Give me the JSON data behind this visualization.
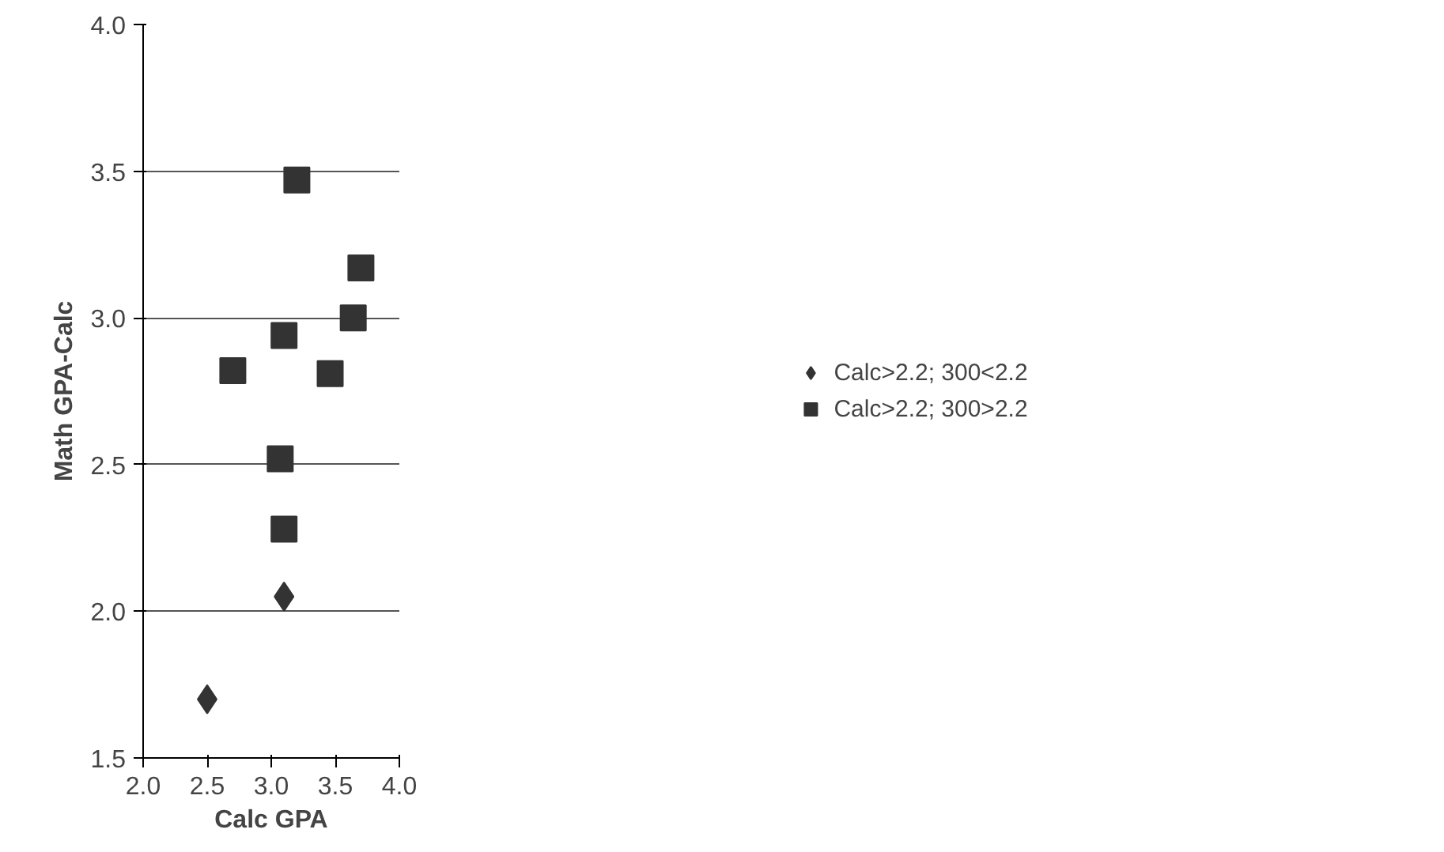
{
  "chart_data": {
    "type": "scatter",
    "xlabel": "Calc GPA",
    "ylabel": "Math GPA-Calc",
    "xlim": [
      2.0,
      4.0
    ],
    "xticks": [
      {
        "value": 2.0,
        "label": "2.0"
      },
      {
        "value": 2.5,
        "label": "2.5"
      },
      {
        "value": 3.0,
        "label": "3.0"
      },
      {
        "value": 3.5,
        "label": "3.5"
      },
      {
        "value": 4.0,
        "label": "4.0"
      }
    ],
    "ylim": [
      1.5,
      4.0
    ],
    "yticks": [
      {
        "value": 1.5,
        "label": "1.5"
      },
      {
        "value": 2.0,
        "label": "2.0"
      },
      {
        "value": 2.5,
        "label": "2.5"
      },
      {
        "value": 3.0,
        "label": "3.0"
      },
      {
        "value": 3.5,
        "label": "3.5"
      },
      {
        "value": 4.0,
        "label": "4.0"
      }
    ],
    "grid": "y",
    "legend": "right",
    "series": [
      {
        "name": "Calc>2.2; 300<2.2",
        "color": "#333333",
        "marker": "diamond",
        "x": [
          2.5,
          3.1
        ],
        "values": [
          1.7,
          2.05
        ]
      },
      {
        "name": "Calc>2.2; 300>2.2",
        "color": "#333333",
        "marker": "square",
        "x": [
          2.7,
          3.2,
          3.1,
          3.07,
          3.1,
          3.46,
          3.64,
          3.7
        ],
        "values": [
          2.82,
          3.47,
          2.94,
          2.52,
          2.28,
          2.81,
          3.0,
          3.17
        ]
      }
    ]
  }
}
